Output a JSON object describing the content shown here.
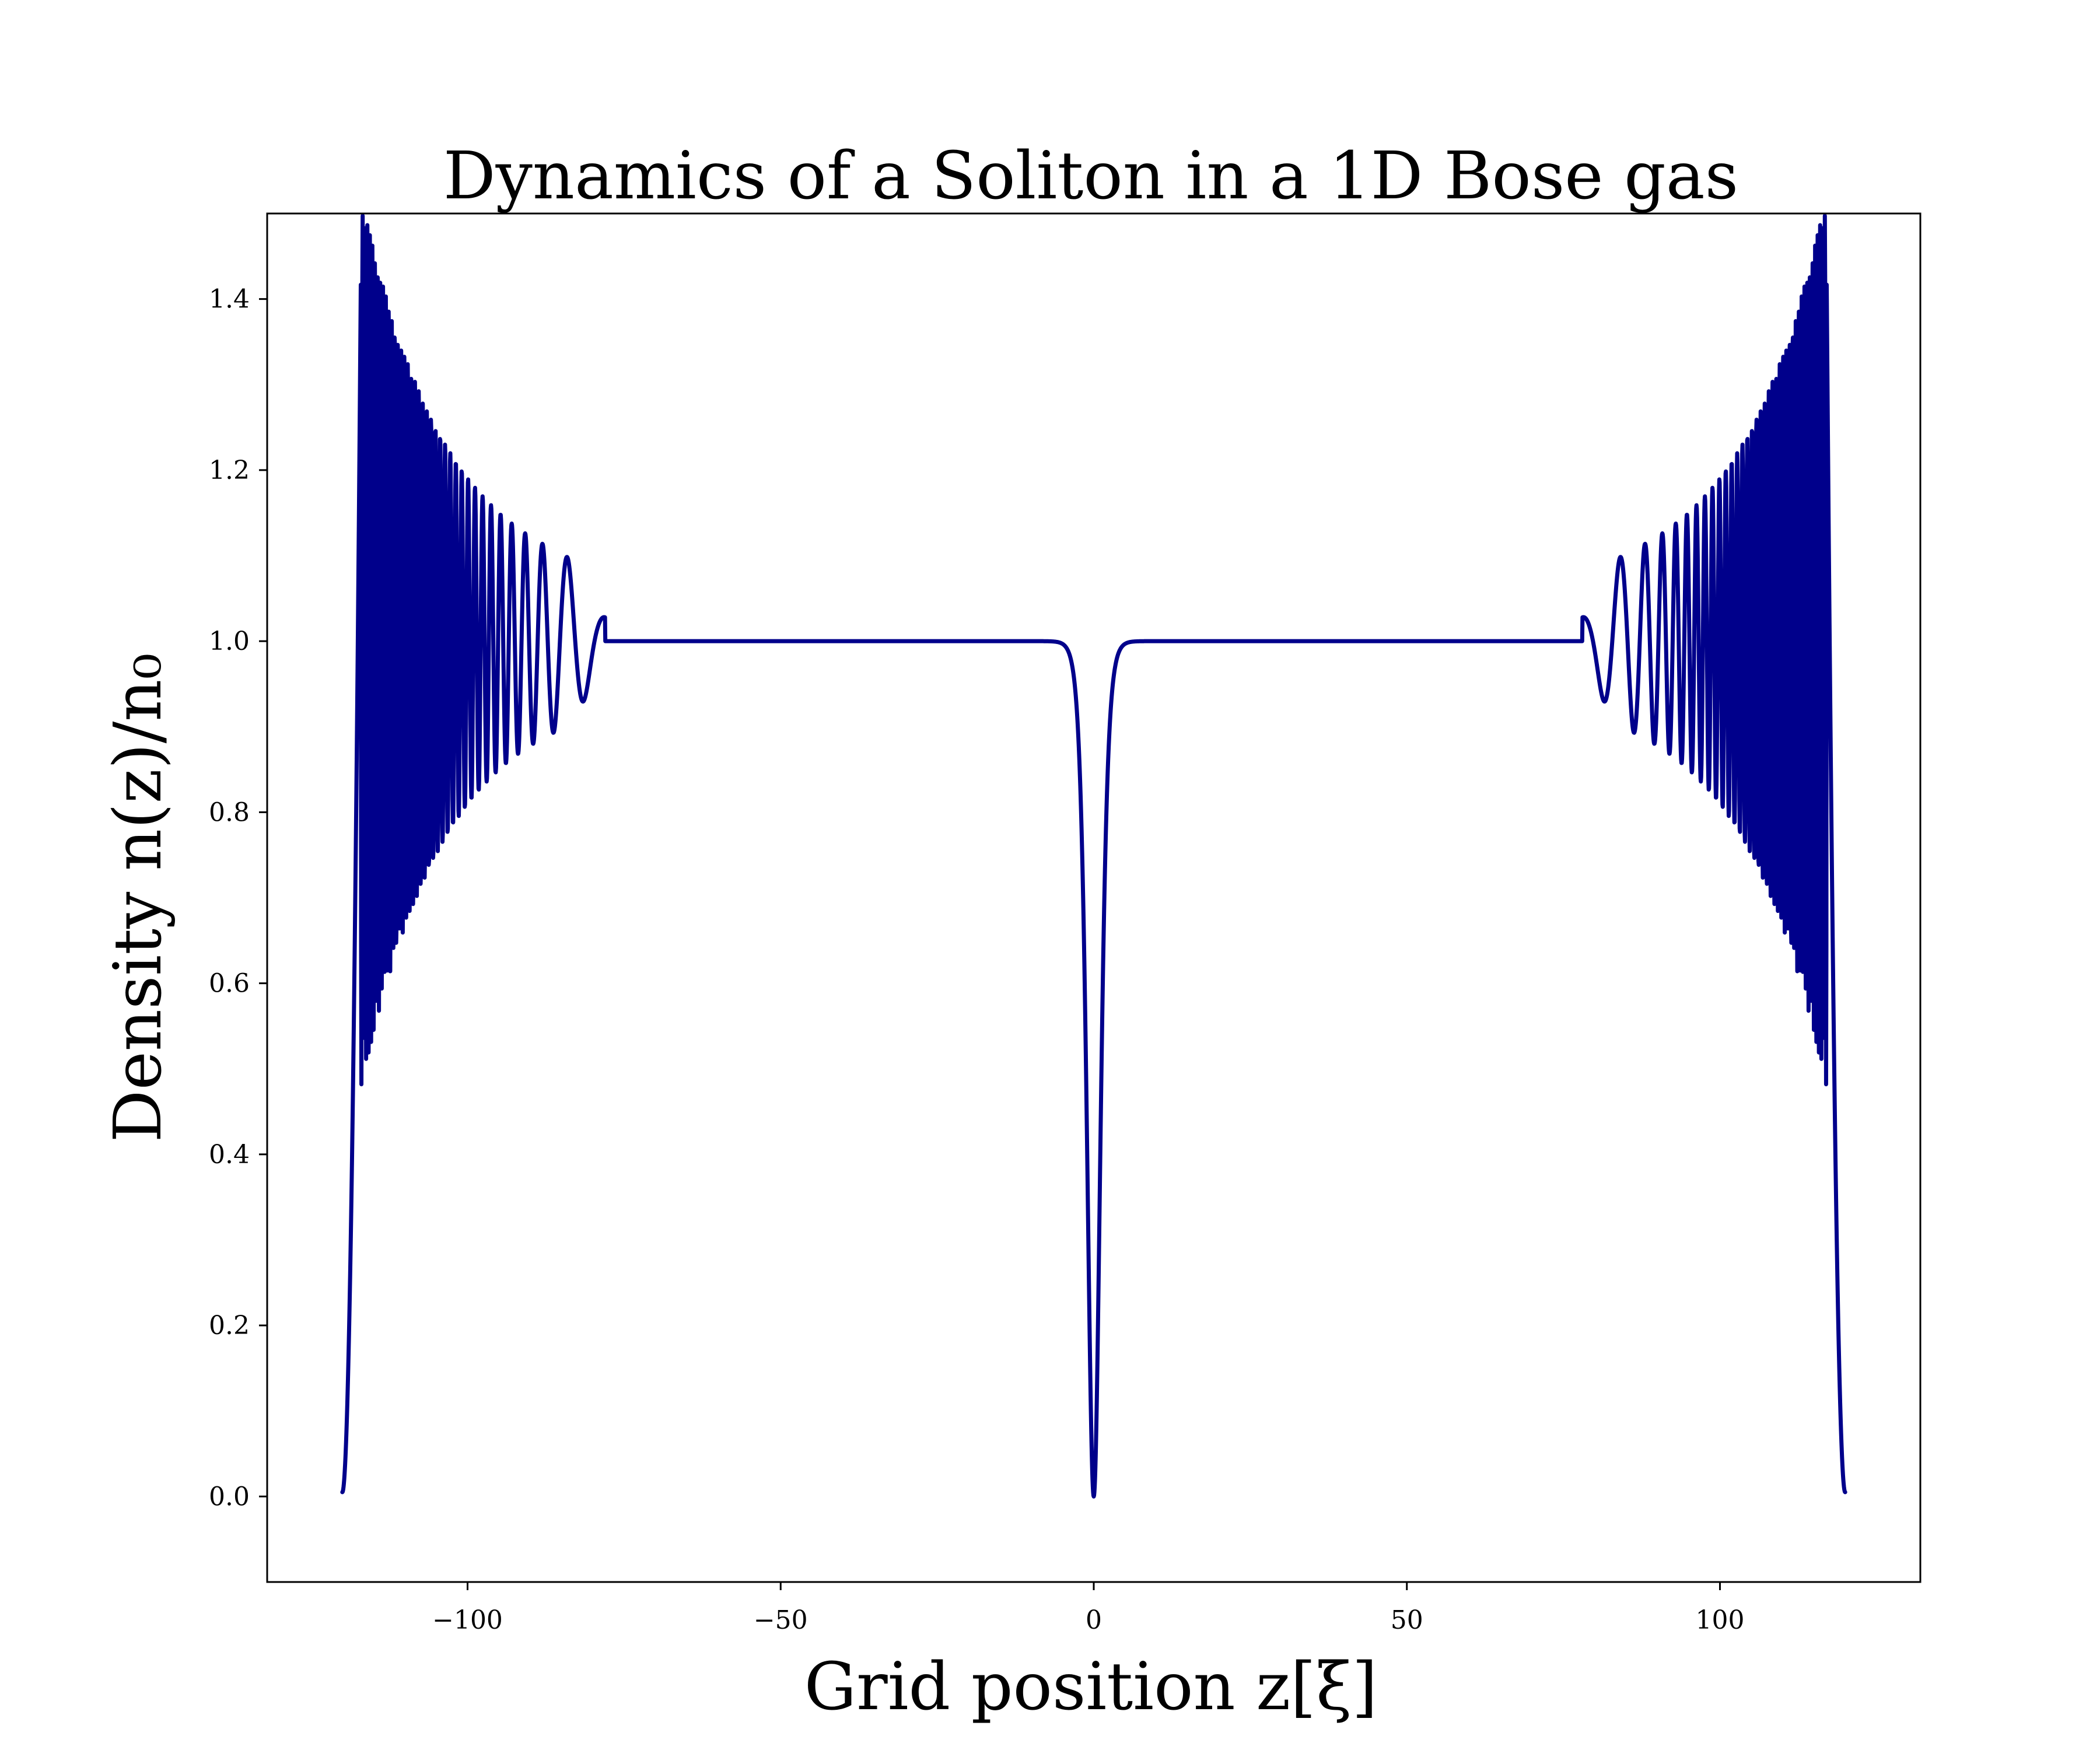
{
  "chart_data": {
    "type": "line",
    "title": "Dynamics of a Soliton in a 1D Bose gas",
    "xlabel": "Grid position z[ξ]",
    "ylabel": "Density n(z)/n₀",
    "xlim": [
      -132,
      132
    ],
    "ylim": [
      -0.1,
      1.5
    ],
    "xticks": [
      -100,
      -50,
      0,
      50,
      100
    ],
    "xtick_labels": [
      "−100",
      "−50",
      "0",
      "50",
      "100"
    ],
    "yticks": [
      0.0,
      0.2,
      0.4,
      0.6,
      0.8,
      1.0,
      1.2,
      1.4
    ],
    "ytick_labels": [
      "0.0",
      "0.2",
      "0.4",
      "0.6",
      "0.8",
      "1.0",
      "1.2",
      "1.4"
    ],
    "grid": false,
    "legend": "none",
    "series": [
      {
        "color": "#00008b",
        "profile": {
          "domain": [
            -120,
            120
          ],
          "background_density": 1.0,
          "dark_soliton": {
            "center": 0,
            "min_density": 0.0,
            "half_width": 1.4
          },
          "boundary_density": 0.0,
          "peak_density": 1.46,
          "peak_positions": [
            -117,
            117
          ],
          "first_minimum": 0.69,
          "oscillation_extent": [
            80,
            120
          ]
        }
      }
    ]
  }
}
